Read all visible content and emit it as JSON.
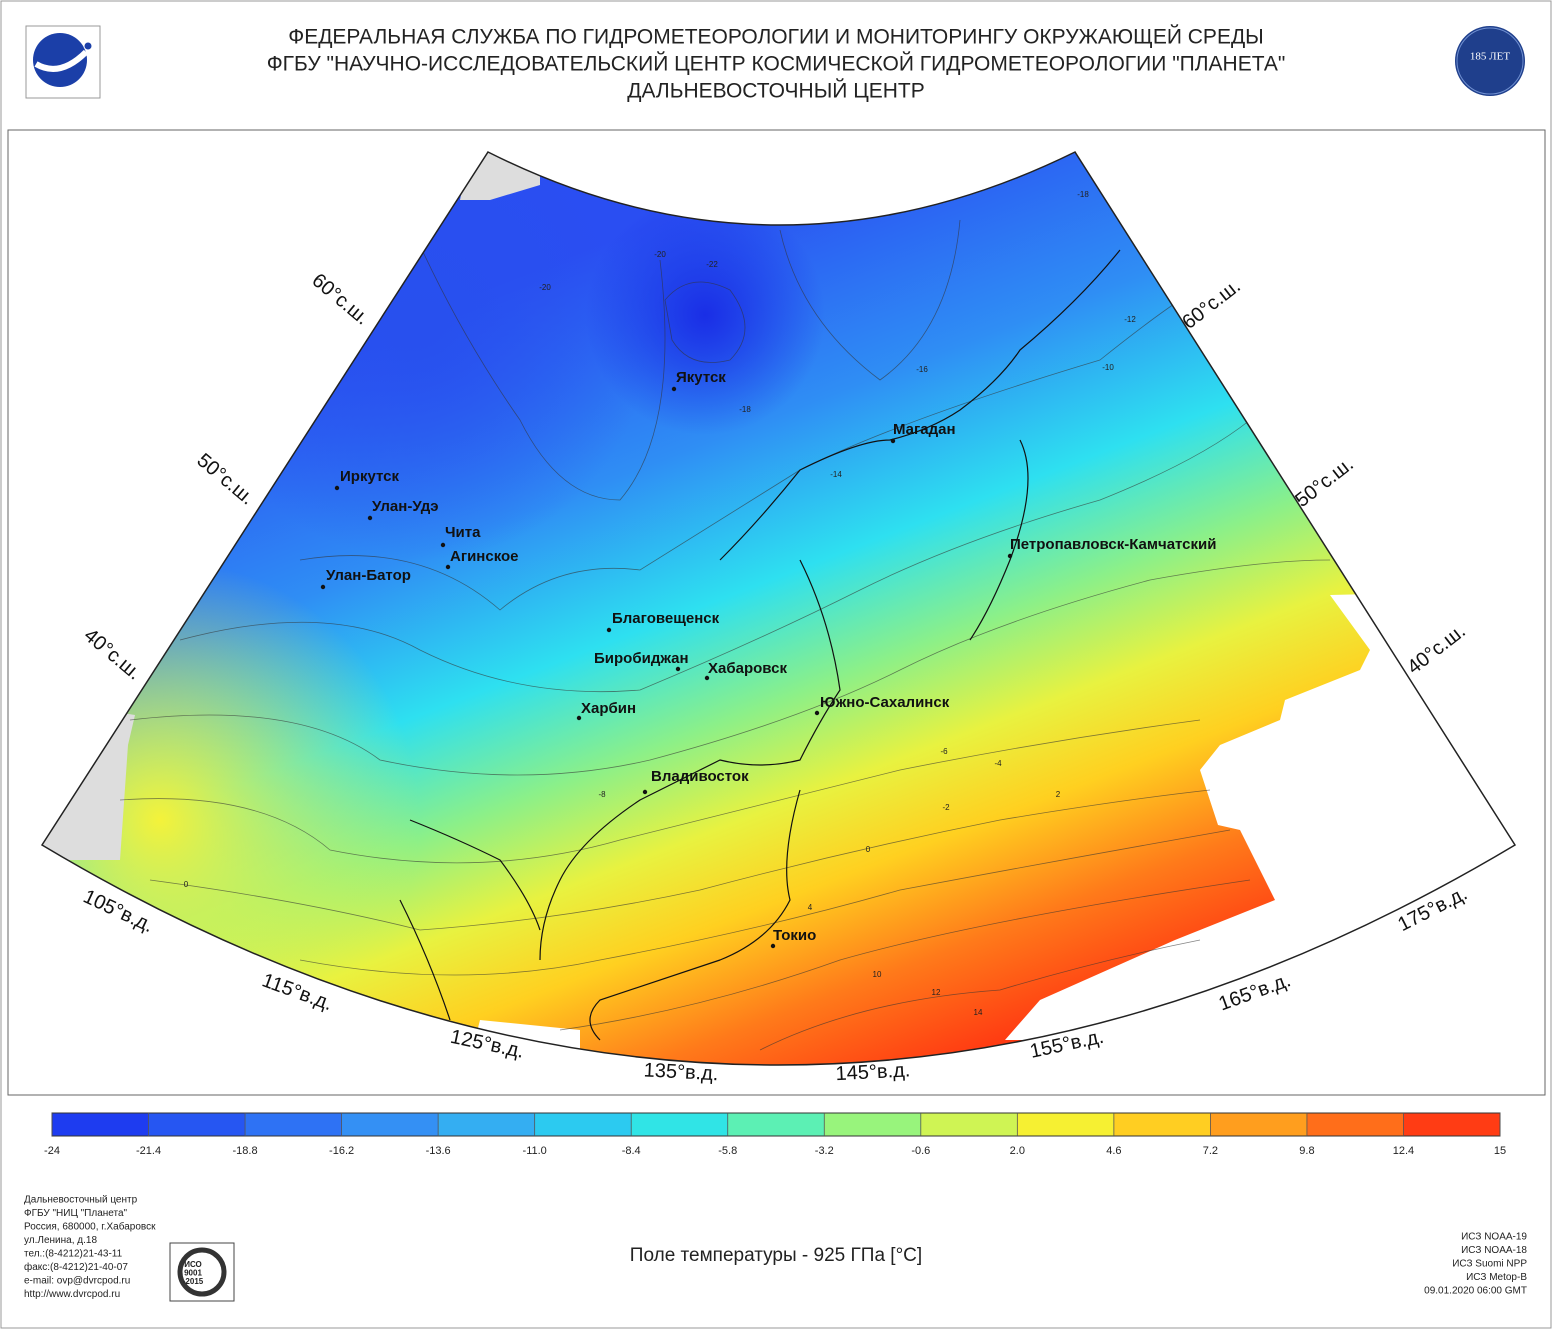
{
  "header": {
    "lines": [
      "ФЕДЕРАЛЬНАЯ СЛУЖБА ПО ГИДРОМЕТЕОРОЛОГИИ И МОНИТОРИНГУ ОКРУЖАЮЩЕЙ СРЕДЫ",
      "ФГБУ \"НАУЧНО-ИССЛЕДОВАТЕЛЬСКИЙ ЦЕНТР КОСМИЧЕСКОЙ ГИДРОМЕТЕОРОЛОГИИ \"ПЛАНЕТА\"",
      "ДАЛЬНЕВОСТОЧНЫЙ ЦЕНТР"
    ],
    "badge": "185 ЛЕТ"
  },
  "map": {
    "cities": [
      "Якутск",
      "Магадан",
      "Иркутск",
      "Улан-Удэ",
      "Чита",
      "Агинское",
      "Улан-Батор",
      "Благовещенск",
      "Биробиджан",
      "Хабаровск",
      "Харбин",
      "Южно-Сахалинск",
      "Петропавловск-Камчатский",
      "Владивосток",
      "Токио"
    ],
    "latitude_labels": [
      "60°с.ш.",
      "60°с.ш.",
      "50°с.ш.",
      "50°с.ш.",
      "40°с.ш.",
      "40°с.ш."
    ],
    "longitude_labels": [
      "105°в.д.",
      "115°в.д.",
      "125°в.д.",
      "135°в.д.",
      "145°в.д.",
      "155°в.д.",
      "165°в.д.",
      "175°в.д."
    ],
    "contour_labels": [
      -20,
      -22,
      -20,
      -18,
      -16,
      -14,
      -12,
      -10,
      -8,
      -6,
      -4,
      -2,
      0,
      2,
      4,
      10,
      12,
      14,
      0,
      -18
    ]
  },
  "colorbar": {
    "ticks": [
      -24,
      -21.4,
      -18.8,
      -16.2,
      -13.6,
      {
        "value": -11,
        "label": "-11.0"
      },
      -8.4,
      -5.8,
      -3.2,
      -0.6,
      {
        "value": 2,
        "label": "2.0"
      },
      4.6,
      7.2,
      9.8,
      12.4,
      15
    ],
    "colors": [
      "#1e3cf0",
      "#2656f2",
      "#2e72f4",
      "#3490f4",
      "#34aef2",
      "#2ccaf0",
      "#30e4e6",
      "#5cf0b4",
      "#98f47c",
      "#cff454",
      "#f6f032",
      "#ffce22",
      "#ff9e1e",
      "#ff6e1a",
      "#ff3c14"
    ]
  },
  "footer": {
    "address": [
      "Дальневосточный центр",
      "ФГБУ \"НИЦ \"Планета\"",
      "Россия, 680000, г.Хабаровск",
      "ул.Ленина, д.18",
      "тел.:(8-4212)21-43-11",
      "факс:(8-4212)21-40-07",
      "e-mail: ovp@dvrcpod.ru",
      "http://www.dvrcpod.ru"
    ],
    "caption": "Поле температуры - 925 ГПа [°C]",
    "satellites": [
      "ИСЗ NOAA-19",
      "ИСЗ NOAA-18",
      "ИСЗ Suomi NPP",
      "ИСЗ Metop-B",
      "09.01.2020 06:00 GMT"
    ],
    "iso": [
      "ИСО",
      "9001",
      "-2015"
    ]
  }
}
